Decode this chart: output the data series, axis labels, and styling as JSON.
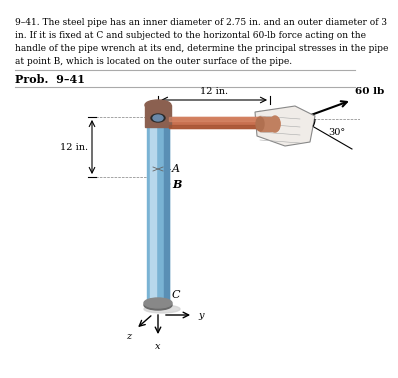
{
  "title_text": "9–41. The steel pipe has an inner diameter of 2.75 in. and an outer diameter of 3\nin. If it is fixed at C and subjected to the horizontal 60-lb force acting on the\nhandle of the pipe wrench at its end, determine the principal stresses in the pipe\nat point B, which is located on the outer surface of the pipe.",
  "prob_label": "Prob.  9–41",
  "dim_12in_top": "12 in.",
  "dim_12in_left": "12 in.",
  "force_label": "60 lb",
  "angle_label": "30°",
  "point_A": "A",
  "point_B": "B",
  "point_C": "C",
  "axis_x": "x",
  "axis_y": "y",
  "axis_z": "z",
  "bg_color": "#ffffff",
  "pipe_color_outer": "#7ab3d4",
  "pipe_color_highlight": "#b8d8ec",
  "pipe_color_shadow": "#5a8fb5",
  "wrench_body_color": "#c87050",
  "wrench_head_color": "#8b6050",
  "wrench_handle_color": "#c87050",
  "ground_color": "#c8c8c8",
  "arrow_color": "#000000",
  "dim_line_color": "#000000",
  "text_color": "#000000"
}
